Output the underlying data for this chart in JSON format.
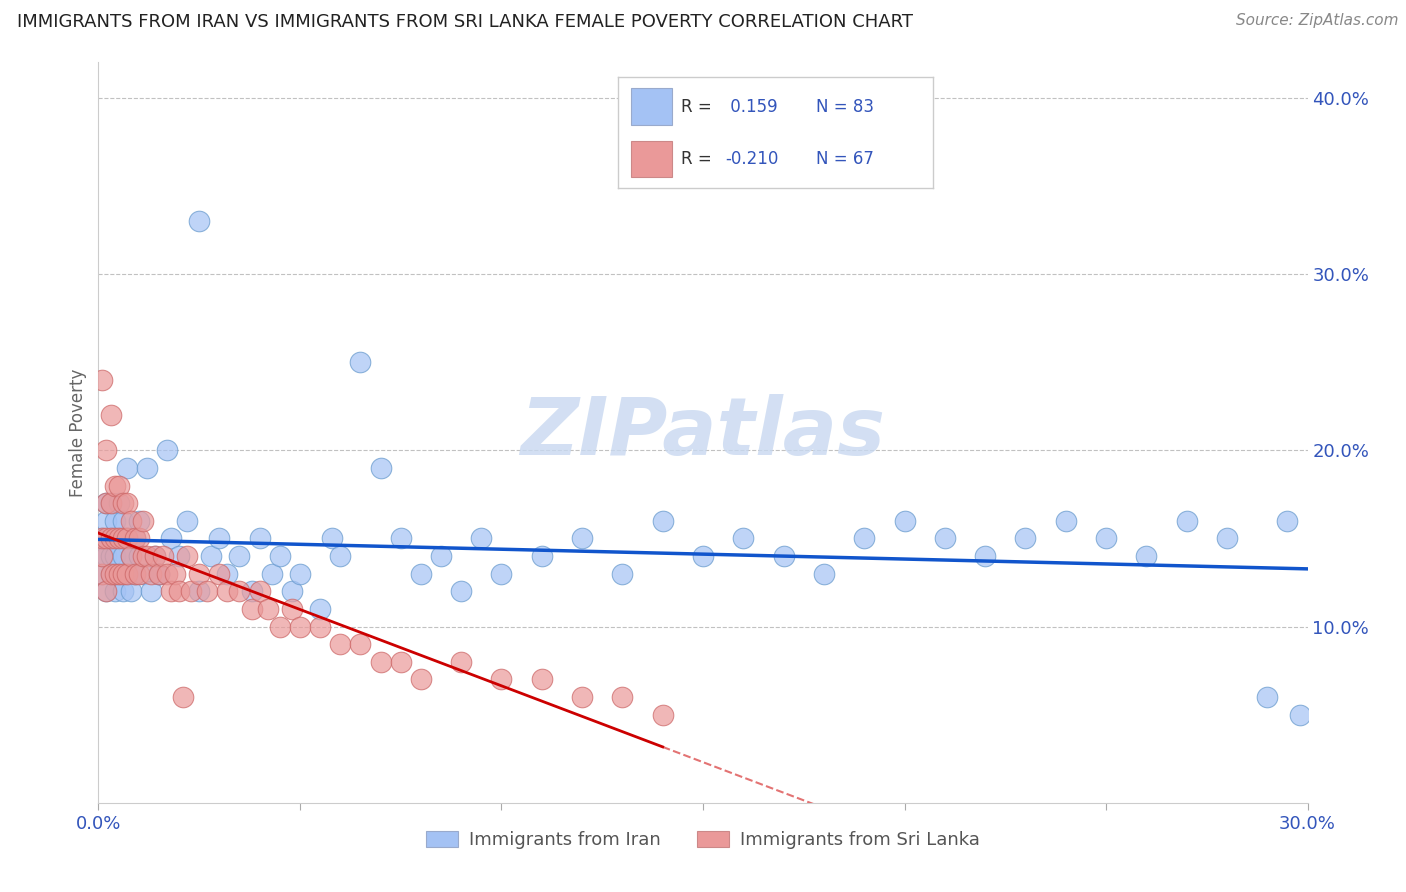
{
  "title": "IMMIGRANTS FROM IRAN VS IMMIGRANTS FROM SRI LANKA FEMALE POVERTY CORRELATION CHART",
  "source": "Source: ZipAtlas.com",
  "ylabel": "Female Poverty",
  "xlim": [
    0.0,
    0.3
  ],
  "ylim": [
    0.0,
    0.42
  ],
  "iran_R": 0.159,
  "iran_N": 83,
  "srilanka_R": -0.21,
  "srilanka_N": 67,
  "iran_color": "#a4c2f4",
  "srilanka_color": "#ea9999",
  "iran_line_color": "#1155cc",
  "srilanka_line_color": "#cc0000",
  "watermark": "ZIPatlas",
  "iran_x": [
    0.001,
    0.001,
    0.001,
    0.002,
    0.002,
    0.002,
    0.002,
    0.003,
    0.003,
    0.003,
    0.003,
    0.004,
    0.004,
    0.004,
    0.005,
    0.005,
    0.005,
    0.006,
    0.006,
    0.006,
    0.007,
    0.007,
    0.007,
    0.008,
    0.008,
    0.009,
    0.009,
    0.01,
    0.01,
    0.011,
    0.012,
    0.013,
    0.014,
    0.015,
    0.017,
    0.018,
    0.02,
    0.022,
    0.025,
    0.028,
    0.03,
    0.032,
    0.035,
    0.038,
    0.04,
    0.043,
    0.045,
    0.048,
    0.05,
    0.055,
    0.058,
    0.06,
    0.065,
    0.07,
    0.075,
    0.08,
    0.085,
    0.09,
    0.095,
    0.1,
    0.11,
    0.12,
    0.13,
    0.14,
    0.15,
    0.16,
    0.17,
    0.18,
    0.19,
    0.2,
    0.21,
    0.22,
    0.23,
    0.24,
    0.25,
    0.26,
    0.27,
    0.28,
    0.29,
    0.295,
    0.298,
    0.015,
    0.025
  ],
  "iran_y": [
    0.13,
    0.14,
    0.15,
    0.12,
    0.14,
    0.16,
    0.17,
    0.13,
    0.14,
    0.15,
    0.17,
    0.12,
    0.14,
    0.16,
    0.13,
    0.15,
    0.17,
    0.12,
    0.14,
    0.16,
    0.13,
    0.15,
    0.19,
    0.12,
    0.14,
    0.13,
    0.15,
    0.14,
    0.16,
    0.13,
    0.19,
    0.12,
    0.14,
    0.13,
    0.2,
    0.15,
    0.14,
    0.16,
    0.12,
    0.14,
    0.15,
    0.13,
    0.14,
    0.12,
    0.15,
    0.13,
    0.14,
    0.12,
    0.13,
    0.11,
    0.15,
    0.14,
    0.25,
    0.19,
    0.15,
    0.13,
    0.14,
    0.12,
    0.15,
    0.13,
    0.14,
    0.15,
    0.13,
    0.16,
    0.14,
    0.15,
    0.14,
    0.13,
    0.15,
    0.16,
    0.15,
    0.14,
    0.15,
    0.16,
    0.15,
    0.14,
    0.16,
    0.15,
    0.06,
    0.16,
    0.05,
    0.13,
    0.33
  ],
  "srilanka_x": [
    0.001,
    0.001,
    0.001,
    0.001,
    0.002,
    0.002,
    0.002,
    0.002,
    0.003,
    0.003,
    0.003,
    0.003,
    0.004,
    0.004,
    0.004,
    0.005,
    0.005,
    0.005,
    0.006,
    0.006,
    0.006,
    0.007,
    0.007,
    0.007,
    0.008,
    0.008,
    0.009,
    0.009,
    0.01,
    0.01,
    0.011,
    0.011,
    0.012,
    0.013,
    0.014,
    0.015,
    0.016,
    0.017,
    0.018,
    0.019,
    0.02,
    0.021,
    0.022,
    0.023,
    0.025,
    0.027,
    0.03,
    0.032,
    0.035,
    0.038,
    0.04,
    0.042,
    0.045,
    0.048,
    0.05,
    0.055,
    0.06,
    0.065,
    0.07,
    0.075,
    0.08,
    0.09,
    0.1,
    0.11,
    0.12,
    0.13,
    0.14
  ],
  "srilanka_y": [
    0.13,
    0.14,
    0.15,
    0.24,
    0.12,
    0.15,
    0.17,
    0.2,
    0.13,
    0.15,
    0.17,
    0.22,
    0.13,
    0.15,
    0.18,
    0.13,
    0.15,
    0.18,
    0.13,
    0.15,
    0.17,
    0.13,
    0.15,
    0.17,
    0.14,
    0.16,
    0.13,
    0.15,
    0.13,
    0.15,
    0.14,
    0.16,
    0.14,
    0.13,
    0.14,
    0.13,
    0.14,
    0.13,
    0.12,
    0.13,
    0.12,
    0.06,
    0.14,
    0.12,
    0.13,
    0.12,
    0.13,
    0.12,
    0.12,
    0.11,
    0.12,
    0.11,
    0.1,
    0.11,
    0.1,
    0.1,
    0.09,
    0.09,
    0.08,
    0.08,
    0.07,
    0.08,
    0.07,
    0.07,
    0.06,
    0.06,
    0.05
  ]
}
